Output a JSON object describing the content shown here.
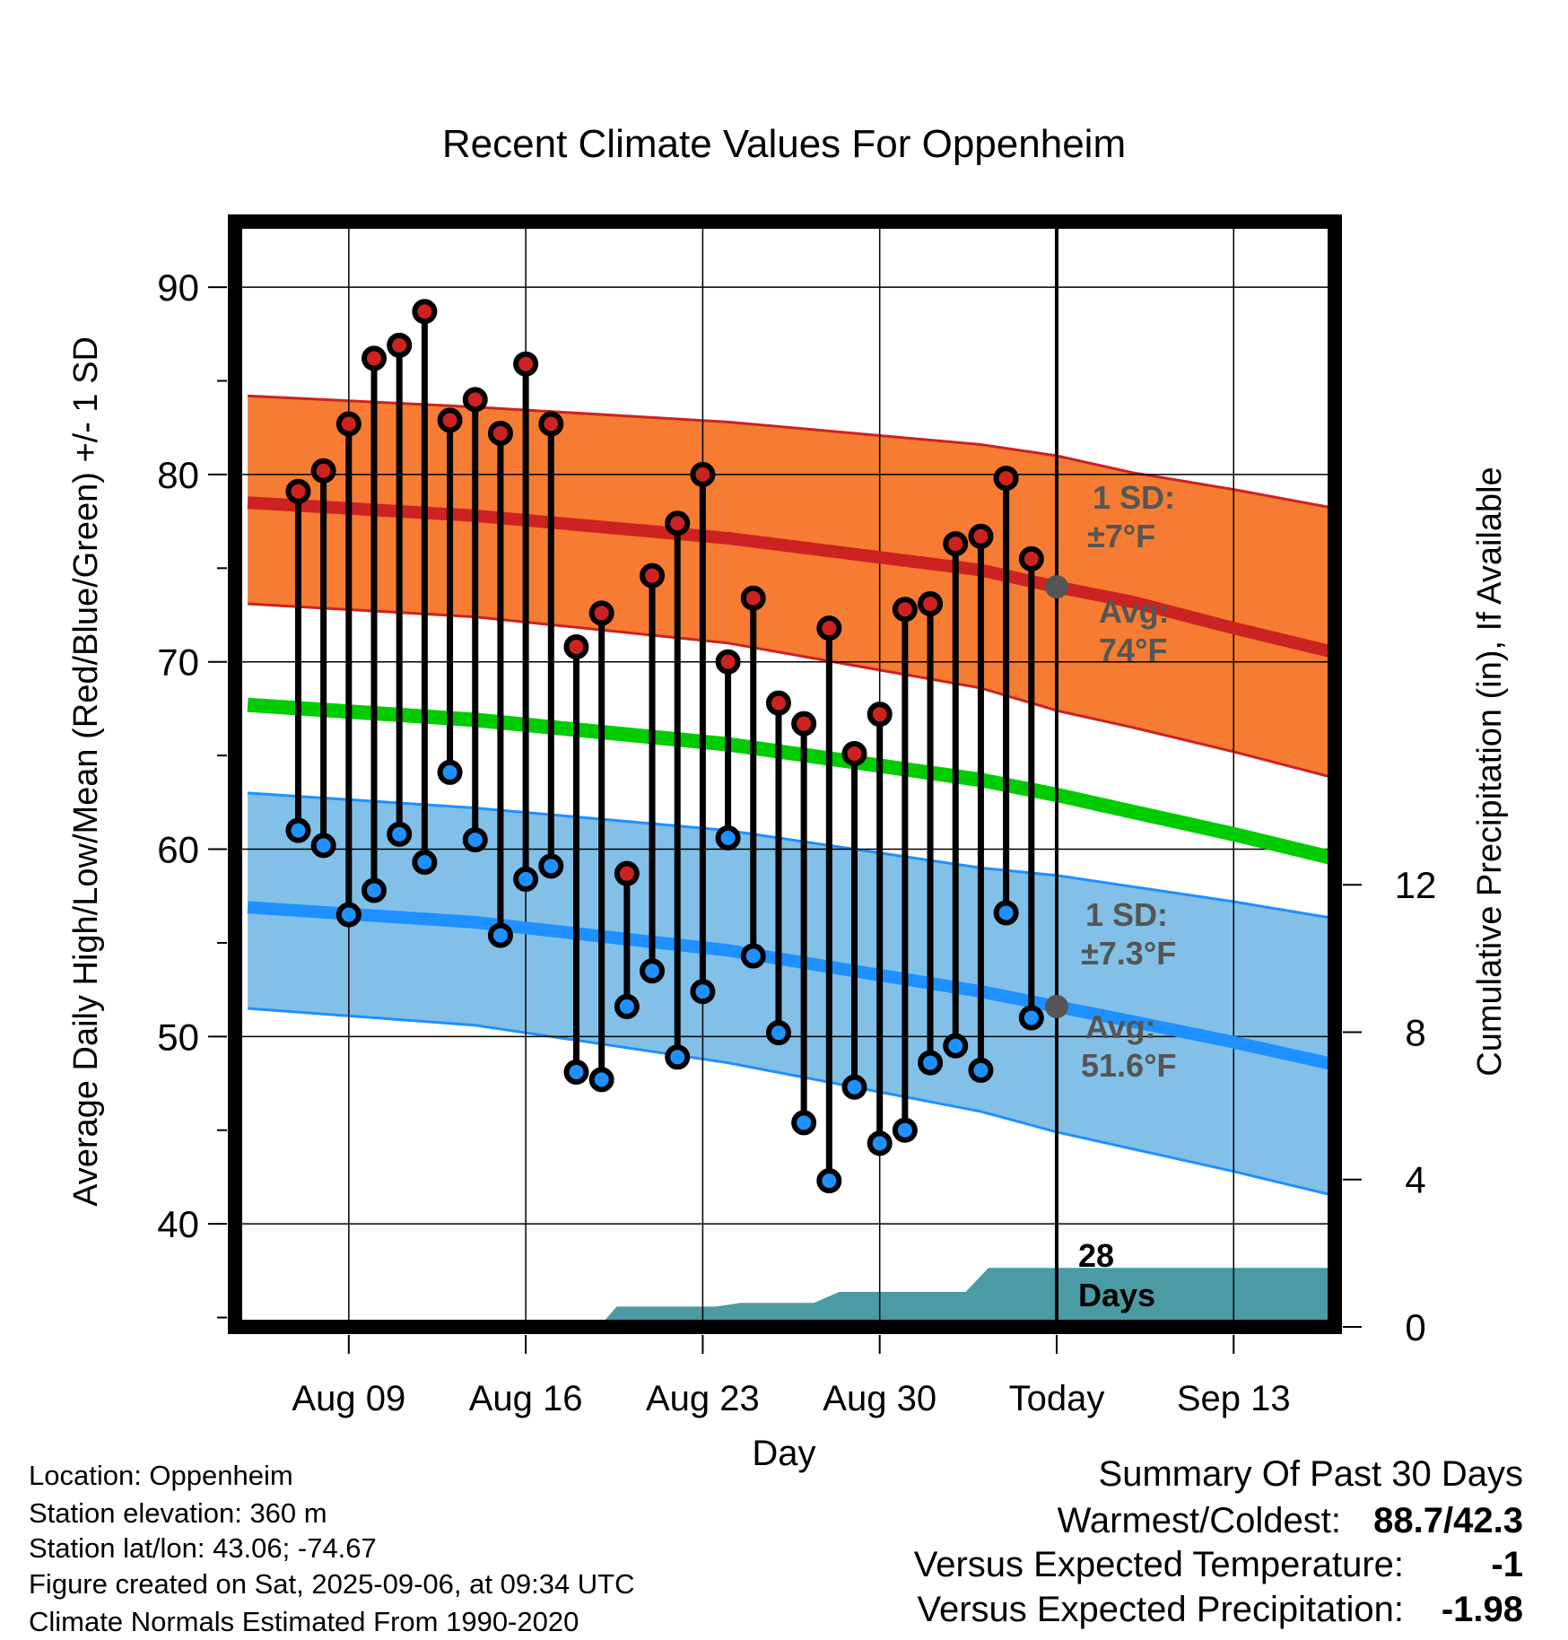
{
  "chart_data": {
    "type": "line",
    "title": "Recent Climate Values For Oppenheim",
    "xlabel": "Day",
    "ylabel": "Average Daily High/Low/Mean (Red/Blue/Green) +/- 1 SD",
    "y2label": "Cumulative Precipitation (in), If Available",
    "ylim": [
      34.5,
      93.5
    ],
    "y2lim": [
      0,
      30
    ],
    "xlim": [
      -29.5,
      14
    ],
    "x_ticks": [
      {
        "x": -25,
        "label": "Aug 09"
      },
      {
        "x": -18,
        "label": "Aug 16"
      },
      {
        "x": -11,
        "label": "Aug 23"
      },
      {
        "x": -4,
        "label": "Aug 30"
      },
      {
        "x": 3,
        "label": "Today"
      },
      {
        "x": 10,
        "label": "Sep 13"
      }
    ],
    "y_ticks": [
      40,
      50,
      60,
      70,
      80,
      90
    ],
    "y2_ticks": [
      0,
      4,
      8,
      12
    ],
    "grid": true,
    "today_x": 3,
    "series": [
      {
        "name": "Daily High",
        "color": "#cc2222",
        "x": [
          -27,
          -26,
          -25,
          -24,
          -23,
          -22,
          -21,
          -20,
          -19,
          -18,
          -17,
          -16,
          -15,
          -14,
          -13,
          -12,
          -11,
          -10,
          -9,
          -8,
          -7,
          -6,
          -5,
          -4,
          -3,
          -2,
          -1,
          0,
          1,
          2
        ],
        "values": [
          79.1,
          80.2,
          82.7,
          86.2,
          86.9,
          88.7,
          82.9,
          84.0,
          82.2,
          85.9,
          82.7,
          70.8,
          72.6,
          58.7,
          74.6,
          77.4,
          80.0,
          70.0,
          73.4,
          67.8,
          66.7,
          71.8,
          65.1,
          67.2,
          72.8,
          73.1,
          76.3,
          76.7,
          79.8,
          75.5
        ]
      },
      {
        "name": "Daily Low",
        "color": "#1e90ff",
        "x": [
          -27,
          -26,
          -25,
          -24,
          -23,
          -22,
          -21,
          -20,
          -19,
          -18,
          -17,
          -16,
          -15,
          -14,
          -13,
          -12,
          -11,
          -10,
          -9,
          -8,
          -7,
          -6,
          -5,
          -4,
          -3,
          -2,
          -1,
          0,
          1,
          2
        ],
        "values": [
          61.0,
          60.2,
          56.5,
          57.8,
          60.8,
          59.3,
          64.1,
          60.5,
          55.4,
          58.4,
          59.1,
          48.1,
          47.7,
          51.6,
          53.5,
          48.9,
          52.4,
          60.6,
          54.3,
          50.2,
          45.4,
          42.3,
          47.3,
          44.3,
          45.0,
          48.6,
          49.5,
          48.2,
          56.6,
          51.0
        ]
      },
      {
        "name": "Normal High",
        "color": "#cc2222",
        "x": [
          -29,
          -20,
          -10,
          0,
          3,
          6,
          10,
          14
        ],
        "values": [
          78.5,
          77.8,
          76.6,
          74.9,
          74.0,
          73.2,
          71.8,
          70.5
        ]
      },
      {
        "name": "Normal High +1 SD",
        "color": "#cc2222",
        "x": [
          -29,
          -20,
          -10,
          0,
          3,
          6,
          10,
          14
        ],
        "values": [
          84.2,
          83.6,
          82.8,
          81.6,
          81.0,
          80.1,
          79.2,
          78.2
        ]
      },
      {
        "name": "Normal High -1 SD",
        "color": "#cc2222",
        "x": [
          -29,
          -20,
          -10,
          0,
          3,
          6,
          10,
          14
        ],
        "values": [
          73.1,
          72.4,
          71.0,
          68.6,
          67.4,
          66.5,
          65.2,
          63.8
        ]
      },
      {
        "name": "Normal Mean",
        "color": "#00cc00",
        "x": [
          -29,
          -20,
          -10,
          0,
          3,
          6,
          10,
          14
        ],
        "values": [
          67.7,
          66.9,
          65.6,
          63.7,
          62.9,
          62.0,
          60.8,
          59.5
        ]
      },
      {
        "name": "Normal Low",
        "color": "#1e90ff",
        "x": [
          -29,
          -20,
          -10,
          0,
          3,
          6,
          10,
          14
        ],
        "values": [
          56.9,
          56.1,
          54.6,
          52.4,
          51.6,
          50.8,
          49.7,
          48.5
        ]
      },
      {
        "name": "Normal Low +1 SD",
        "color": "#1e90ff",
        "x": [
          -29,
          -20,
          -10,
          0,
          3,
          6,
          10,
          14
        ],
        "values": [
          63.0,
          62.2,
          61.0,
          59.0,
          58.6,
          58.0,
          57.2,
          56.3
        ]
      },
      {
        "name": "Normal Low -1 SD",
        "color": "#1e90ff",
        "x": [
          -29,
          -20,
          -10,
          0,
          3,
          6,
          10,
          14
        ],
        "values": [
          51.5,
          50.6,
          48.6,
          46.0,
          44.9,
          44.0,
          42.8,
          41.5
        ]
      },
      {
        "name": "Cumulative Precipitation",
        "color": "#4a9ba3",
        "x": [
          -15.1,
          -14.4,
          -10.5,
          -9.5,
          -8.5,
          -6.6,
          -5.6,
          -0.6,
          0.3,
          14
        ],
        "values": [
          0,
          0.55,
          0.55,
          0.65,
          0.65,
          0.65,
          0.95,
          0.95,
          1.6,
          1.6
        ]
      }
    ],
    "annotations": {
      "high_sd": [
        "1 SD:",
        "±7°F"
      ],
      "high_avg": [
        "Avg:",
        "74°F"
      ],
      "low_sd": [
        "1 SD:",
        "±7.3°F"
      ],
      "low_avg": [
        "Avg:",
        "51.6°F"
      ],
      "precip_days": [
        "28",
        "Days"
      ]
    },
    "colors": {
      "high_band": "#f57c32",
      "low_band": "#82c0e8",
      "precip_fill": "#4a9ba3",
      "today_marker": "#555555"
    }
  },
  "footer": {
    "location": "Location: Oppenheim",
    "elevation": "Station elevation: 360 m",
    "latlon": "Station lat/lon: 43.06; -74.67",
    "created": "Figure created on Sat, 2025-09-06, at 09:34 UTC",
    "normals": "Climate Normals Estimated From 1990-2020"
  },
  "summary": {
    "heading": "Summary Of Past 30 Days",
    "warm_cold_label": "Warmest/Coldest:",
    "warm_cold_value": "88.7/42.3",
    "temp_label": "Versus Expected Temperature:",
    "temp_value": "-1",
    "temp_color": "#1e90ff",
    "precip_label": "Versus Expected Precipitation:",
    "precip_value": "-1.98",
    "precip_color": "#a0522d"
  }
}
